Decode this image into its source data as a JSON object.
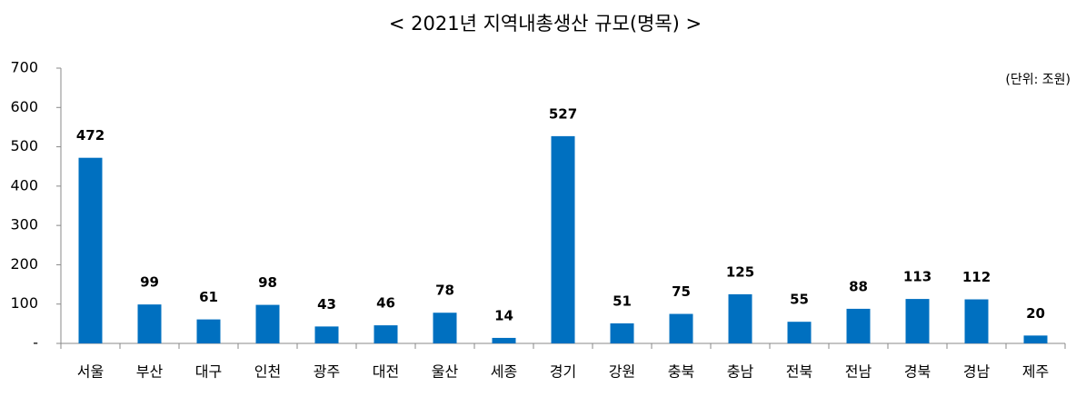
{
  "chart_data": {
    "type": "bar",
    "title": "< 2021년 지역내총생산 규모(명목) >",
    "unit": "(단위: 조원)",
    "categories": [
      "서울",
      "부산",
      "대구",
      "인천",
      "광주",
      "대전",
      "울산",
      "세종",
      "경기",
      "강원",
      "충북",
      "충남",
      "전북",
      "전남",
      "경북",
      "경남",
      "제주"
    ],
    "values": [
      472,
      99,
      61,
      98,
      43,
      46,
      78,
      14,
      527,
      51,
      75,
      125,
      55,
      88,
      113,
      112,
      20
    ],
    "color": "#0070c0",
    "ylim": [
      0,
      700
    ],
    "yticks": [
      {
        "value": 0,
        "label": "-"
      },
      100,
      200,
      300,
      400,
      500,
      600,
      700
    ],
    "grid": false
  }
}
